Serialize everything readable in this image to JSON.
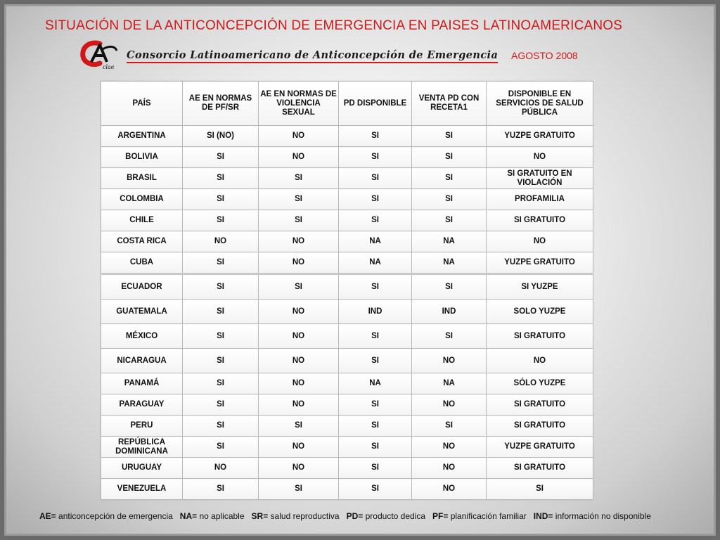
{
  "title": "SITUACIÓN DE LA  ANTICONCEPCIÓN DE EMERGENCIA EN PAISES LATINOAMERICANOS",
  "consortium": "Consorcio Latinoamericano de Anticoncepción de Emergencia",
  "logo_text": "clae",
  "date": "AGOSTO 2008",
  "colors": {
    "title": "#d01818",
    "text": "#111111",
    "border": "#b8b8b8"
  },
  "table": {
    "headers": [
      "PAÍS",
      "AE EN NORMAS DE PF/SR",
      "AE EN NORMAS DE VIOLENCIA SEXUAL",
      "PD DISPONIBLE",
      "VENTA PD CON RECETA1",
      "DISPONIBLE EN SERVICIOS DE SALUD PÚBLICA"
    ],
    "rows": [
      [
        "ARGENTINA",
        "SI  (NO)",
        "NO",
        "SI",
        "SI",
        "YUZPE GRATUITO"
      ],
      [
        "BOLIVIA",
        "SI",
        "NO",
        "SI",
        "SI",
        "NO"
      ],
      [
        "BRASIL",
        "SI",
        "SI",
        "SI",
        "SI",
        "SI GRATUITO EN VIOLACIÓN"
      ],
      [
        "COLOMBIA",
        "SI",
        "SI",
        "SI",
        "SI",
        "PROFAMILIA"
      ],
      [
        "CHILE",
        "SI",
        "SI",
        "SI",
        "SI",
        "SI  GRATUITO"
      ],
      [
        "COSTA RICA",
        "NO",
        "NO",
        "NA",
        "NA",
        "NO"
      ],
      [
        "CUBA",
        "SI",
        "NO",
        "NA",
        "NA",
        "YUZPE GRATUITO"
      ],
      [
        "ECUADOR",
        "SI",
        "SI",
        "SI",
        "SI",
        "SI YUZPE"
      ],
      [
        "GUATEMALA",
        "SI",
        "NO",
        "IND",
        "IND",
        "SOLO YUZPE"
      ],
      [
        "MÉXICO",
        "SI",
        "NO",
        "SI",
        "SI",
        "SI  GRATUITO"
      ],
      [
        "NICARAGUA",
        "SI",
        "NO",
        "SI",
        "NO",
        "NO"
      ],
      [
        "PANAMÁ",
        "SI",
        "NO",
        "NA",
        "NA",
        "SÓLO YUZPE"
      ],
      [
        "PARAGUAY",
        "SI",
        "NO",
        "SI",
        "NO",
        "SI  GRATUITO"
      ],
      [
        "PERU",
        "SI",
        "SI",
        "SI",
        "SI",
        "SI  GRATUITO"
      ],
      [
        "REPÚBLICA DOMINICANA",
        "SI",
        "NO",
        "SI",
        "NO",
        "YUZPE GRATUITO"
      ],
      [
        "URUGUAY",
        "NO",
        "NO",
        "SI",
        "NO",
        "SI  GRATUITO"
      ],
      [
        "VENEZUELA",
        "SI",
        "SI",
        "SI",
        "NO",
        "SI"
      ]
    ]
  },
  "legend": [
    {
      "term": "AE=",
      "definition": " anticoncepción de emergencia"
    },
    {
      "term": "NA=",
      "definition": " no aplicable"
    },
    {
      "term": "SR=",
      "definition": " salud reproductiva"
    },
    {
      "term": "PD=",
      "definition": " producto dedica"
    },
    {
      "term": "PF=",
      "definition": " planificación familiar"
    },
    {
      "term": "IND=",
      "definition": " información no disponible"
    }
  ]
}
